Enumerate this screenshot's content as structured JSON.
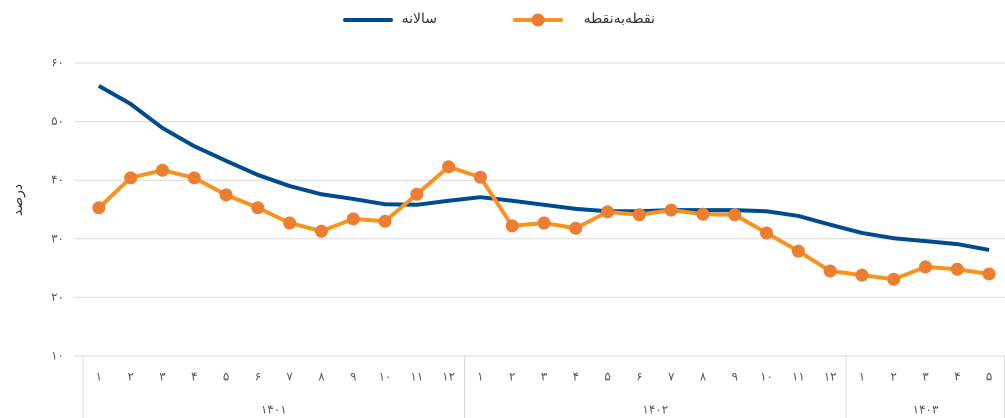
{
  "chart_data": {
    "type": "line",
    "y_label": "درصد",
    "category_groups": [
      {
        "label": "۱۴۰۱",
        "categories": [
          "۱",
          "۲",
          "۳",
          "۴",
          "۵",
          "۶",
          "۷",
          "۸",
          "۹",
          "۱۰",
          "۱۱",
          "۱۲"
        ]
      },
      {
        "label": "۱۴۰۲",
        "categories": [
          "۱",
          "۲",
          "۳",
          "۴",
          "۵",
          "۶",
          "۷",
          "۸",
          "۹",
          "۱۰",
          "۱۱",
          "۱۲"
        ]
      },
      {
        "label": "۱۴۰۳",
        "categories": [
          "۱",
          "۲",
          "۳",
          "۴",
          "۵"
        ]
      }
    ],
    "series": [
      {
        "name": "سالانه",
        "color": "#004a8f",
        "markers": false,
        "values": [
          56.1,
          53,
          48.9,
          45.8,
          43.3,
          40.9,
          39,
          37.6,
          36.8,
          35.9,
          35.8,
          36.5,
          37.1,
          36.5,
          35.8,
          35.1,
          34.7,
          34.7,
          34.9,
          34.9,
          34.9,
          34.7,
          33.9,
          32.4,
          31,
          30.1,
          29.6,
          29.1,
          28.1
        ]
      },
      {
        "name": "نقطه‌به‌نقطه",
        "color": "#f7931e",
        "marker_color": "#ed7d31",
        "markers": true,
        "values": [
          35.3,
          40.4,
          41.7,
          40.4,
          37.5,
          35.3,
          32.7,
          31.3,
          33.4,
          33,
          37.6,
          42.3,
          40.5,
          32.2,
          32.7,
          31.8,
          34.6,
          34.1,
          34.9,
          34.2,
          34.1,
          31,
          27.9,
          24.5,
          23.8,
          23.1,
          25.2,
          24.8,
          24
        ]
      }
    ],
    "ylim": [
      10,
      60
    ],
    "yticks": [
      {
        "value": 10,
        "label": "۱۰"
      },
      {
        "value": 20,
        "label": "۲۰"
      },
      {
        "value": 30,
        "label": "۳۰"
      },
      {
        "value": 40,
        "label": "۴۰"
      },
      {
        "value": 50,
        "label": "۵۰"
      },
      {
        "value": 60,
        "label": "۶۰"
      }
    ],
    "grid": true
  }
}
